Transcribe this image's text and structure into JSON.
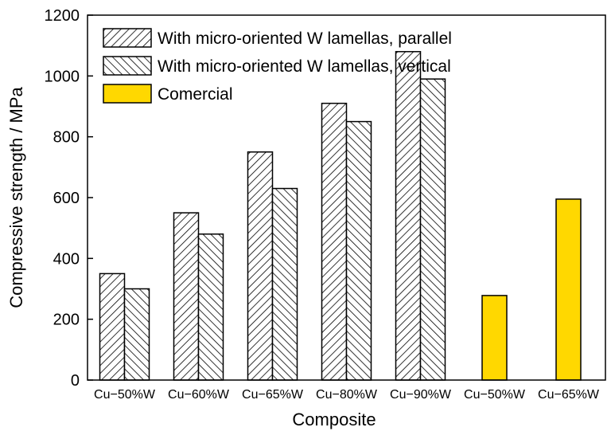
{
  "chart_data": {
    "type": "bar",
    "title": "",
    "xlabel": "Composite",
    "ylabel": "Compressive strength / MPa",
    "ylim": [
      0,
      1200
    ],
    "yticks": [
      0,
      200,
      400,
      600,
      800,
      1000,
      1200
    ],
    "grid": false,
    "legend_position": "top-left",
    "categories": [
      "Cu−50%W",
      "Cu−60%W",
      "Cu−65%W",
      "Cu−80%W",
      "Cu−90%W",
      "Cu−50%W",
      "Cu−65%W"
    ],
    "series": [
      {
        "name": "With micro-oriented W lamellas, parallel",
        "fill": "hatch-parallel",
        "color": "#ffffff",
        "values": [
          350,
          550,
          750,
          910,
          1080,
          null,
          null
        ]
      },
      {
        "name": "With micro-oriented W lamellas, vertical",
        "fill": "hatch-vertical",
        "color": "#ffffff",
        "values": [
          300,
          480,
          630,
          850,
          990,
          null,
          null
        ]
      },
      {
        "name": "Comercial",
        "fill": "solid",
        "color": "#ffd800",
        "values": [
          null,
          null,
          null,
          null,
          null,
          278,
          595
        ]
      }
    ]
  }
}
